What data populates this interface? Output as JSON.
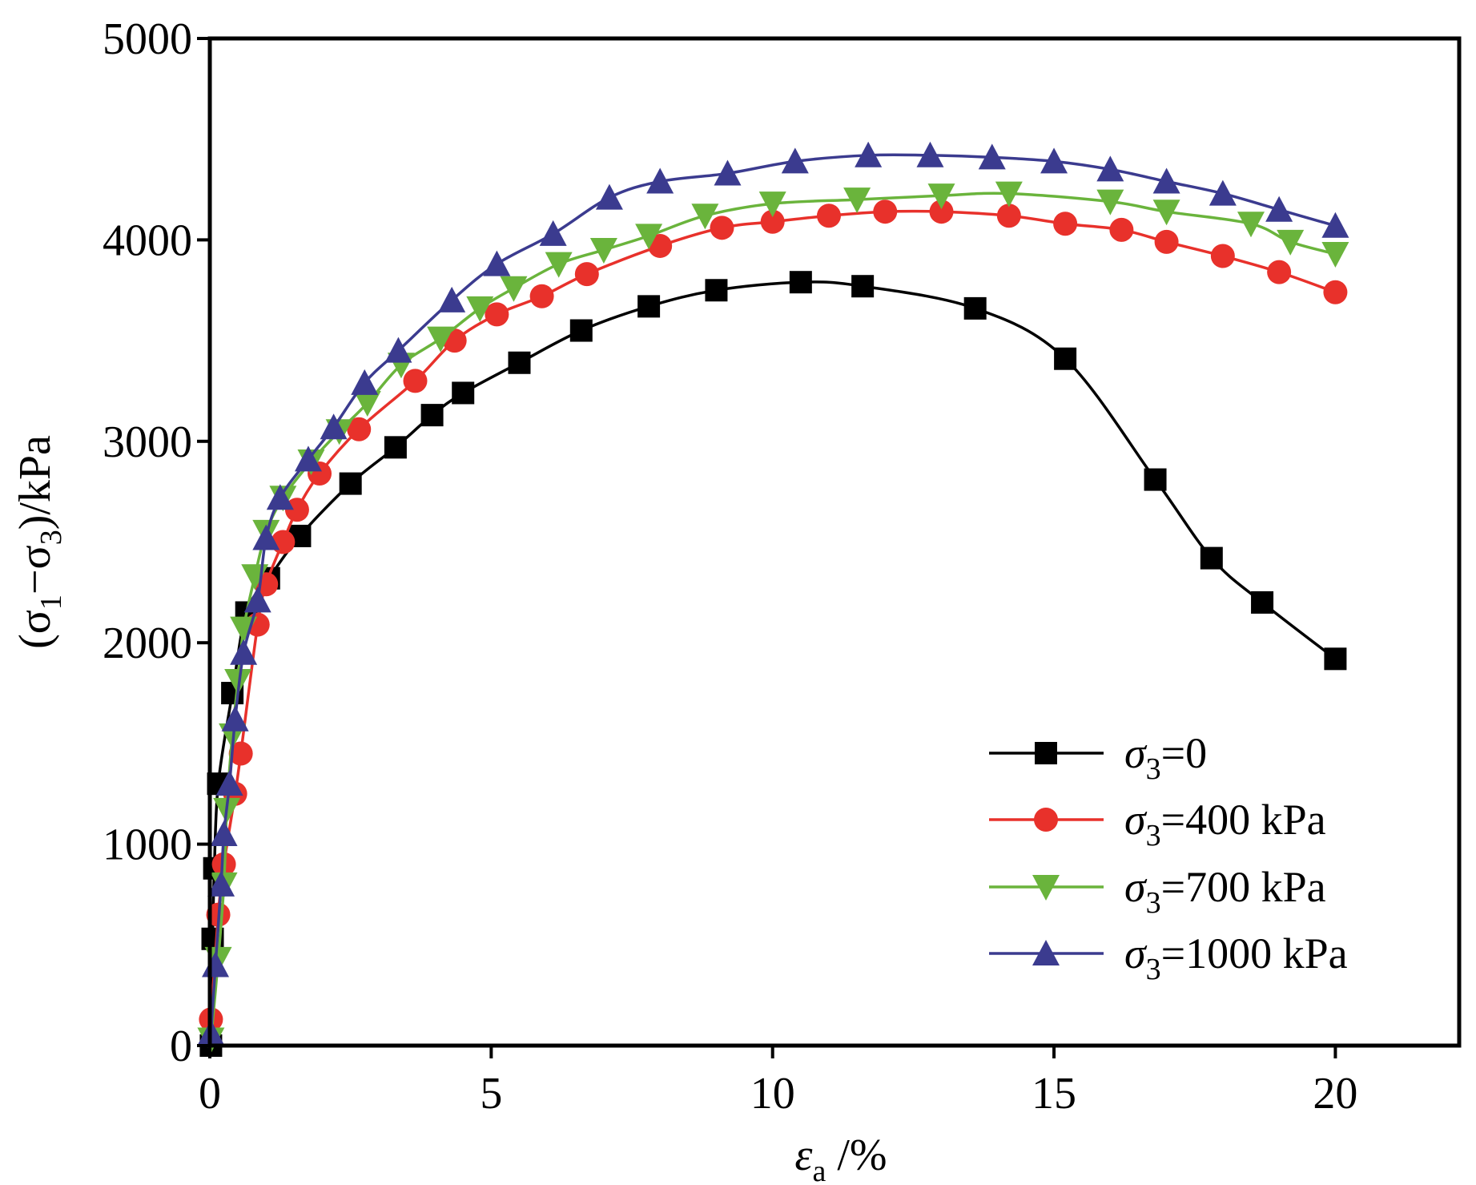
{
  "chart_data": {
    "type": "line",
    "xlabel": {
      "symbol": "ε",
      "subscript": "a",
      "suffix": " /%"
    },
    "ylabel": {
      "parts": [
        {
          "text": "(σ",
          "sub": false
        },
        {
          "text": "1",
          "sub": true
        },
        {
          "text": "−σ",
          "sub": false
        },
        {
          "text": "3",
          "sub": true
        },
        {
          "text": ")/kPa",
          "sub": false
        }
      ]
    },
    "xlim": [
      0,
      22.2
    ],
    "ylim": [
      0,
      5000
    ],
    "x_ticks": [
      0,
      5,
      10,
      15,
      20
    ],
    "x_tick_labels": [
      "0",
      "5",
      "10",
      "15",
      "20"
    ],
    "y_ticks": [
      0,
      1000,
      2000,
      3000,
      4000,
      5000
    ],
    "y_tick_labels": [
      "0",
      "1000",
      "2000",
      "3000",
      "4000",
      "5000"
    ],
    "grid": false,
    "legend_position": "bottom-right",
    "series": [
      {
        "name": "σ3=0",
        "legend": {
          "symbol": "σ",
          "sub": "3",
          "value": "=0"
        },
        "color": "#000000",
        "marker": "square",
        "points": [
          [
            0.02,
            0
          ],
          [
            0.05,
            530
          ],
          [
            0.08,
            880
          ],
          [
            0.15,
            1300
          ],
          [
            0.4,
            1750
          ],
          [
            0.65,
            2150
          ],
          [
            1.05,
            2320
          ],
          [
            1.6,
            2530
          ],
          [
            2.5,
            2790
          ],
          [
            3.3,
            2970
          ],
          [
            3.95,
            3130
          ],
          [
            4.5,
            3240
          ],
          [
            5.5,
            3390
          ],
          [
            6.6,
            3550
          ],
          [
            7.8,
            3670
          ],
          [
            9.0,
            3750
          ],
          [
            10.5,
            3790
          ],
          [
            11.6,
            3770
          ],
          [
            13.6,
            3660
          ],
          [
            15.2,
            3410
          ],
          [
            16.8,
            2810
          ],
          [
            17.8,
            2420
          ],
          [
            18.7,
            2200
          ],
          [
            20.0,
            1920
          ]
        ]
      },
      {
        "name": "σ3=400 kPa",
        "legend": {
          "symbol": "σ",
          "sub": "3",
          "value": "=400 kPa"
        },
        "color": "#e8312b",
        "marker": "circle",
        "points": [
          [
            0.02,
            130
          ],
          [
            0.15,
            650
          ],
          [
            0.25,
            900
          ],
          [
            0.45,
            1250
          ],
          [
            0.55,
            1450
          ],
          [
            0.85,
            2090
          ],
          [
            1.0,
            2290
          ],
          [
            1.3,
            2500
          ],
          [
            1.55,
            2660
          ],
          [
            1.95,
            2840
          ],
          [
            2.65,
            3060
          ],
          [
            3.65,
            3300
          ],
          [
            4.35,
            3500
          ],
          [
            5.1,
            3630
          ],
          [
            5.9,
            3720
          ],
          [
            6.7,
            3830
          ],
          [
            8.0,
            3970
          ],
          [
            9.1,
            4060
          ],
          [
            10.0,
            4090
          ],
          [
            11.0,
            4120
          ],
          [
            12.0,
            4140
          ],
          [
            13.0,
            4140
          ],
          [
            14.2,
            4120
          ],
          [
            15.2,
            4080
          ],
          [
            16.2,
            4050
          ],
          [
            17.0,
            3990
          ],
          [
            18.0,
            3920
          ],
          [
            19.0,
            3840
          ],
          [
            20.0,
            3740
          ]
        ]
      },
      {
        "name": "σ3=700 kPa",
        "legend": {
          "symbol": "σ",
          "sub": "3",
          "value": "=700 kPa"
        },
        "color": "#6ab43c",
        "marker": "triangle-down",
        "points": [
          [
            0.02,
            30
          ],
          [
            0.15,
            430
          ],
          [
            0.25,
            800
          ],
          [
            0.3,
            1170
          ],
          [
            0.4,
            1540
          ],
          [
            0.5,
            1810
          ],
          [
            0.6,
            2070
          ],
          [
            0.8,
            2330
          ],
          [
            1.0,
            2550
          ],
          [
            1.3,
            2720
          ],
          [
            1.8,
            2900
          ],
          [
            2.3,
            3050
          ],
          [
            2.8,
            3190
          ],
          [
            3.4,
            3380
          ],
          [
            4.1,
            3510
          ],
          [
            4.8,
            3660
          ],
          [
            5.4,
            3760
          ],
          [
            6.2,
            3880
          ],
          [
            7.0,
            3950
          ],
          [
            7.8,
            4020
          ],
          [
            8.8,
            4120
          ],
          [
            10.0,
            4180
          ],
          [
            11.5,
            4200
          ],
          [
            13.0,
            4220
          ],
          [
            14.2,
            4230
          ],
          [
            16.0,
            4190
          ],
          [
            17.0,
            4140
          ],
          [
            18.5,
            4080
          ],
          [
            19.2,
            3990
          ],
          [
            20.0,
            3930
          ]
        ]
      },
      {
        "name": "σ3=1000 kPa",
        "legend": {
          "symbol": "σ",
          "sub": "3",
          "value": "=1000 kPa"
        },
        "color": "#3b3b8f",
        "marker": "triangle-up",
        "points": [
          [
            0.02,
            60
          ],
          [
            0.1,
            400
          ],
          [
            0.2,
            800
          ],
          [
            0.25,
            1050
          ],
          [
            0.35,
            1300
          ],
          [
            0.45,
            1620
          ],
          [
            0.6,
            1950
          ],
          [
            0.85,
            2210
          ],
          [
            1.0,
            2520
          ],
          [
            1.25,
            2720
          ],
          [
            1.75,
            2910
          ],
          [
            2.2,
            3070
          ],
          [
            2.75,
            3290
          ],
          [
            3.35,
            3450
          ],
          [
            4.3,
            3700
          ],
          [
            5.1,
            3880
          ],
          [
            6.1,
            4030
          ],
          [
            7.1,
            4210
          ],
          [
            8.0,
            4290
          ],
          [
            9.2,
            4330
          ],
          [
            10.4,
            4390
          ],
          [
            11.7,
            4420
          ],
          [
            12.8,
            4420
          ],
          [
            13.9,
            4410
          ],
          [
            15.0,
            4390
          ],
          [
            16.0,
            4350
          ],
          [
            17.0,
            4290
          ],
          [
            18.0,
            4230
          ],
          [
            19.0,
            4150
          ],
          [
            20.0,
            4070
          ]
        ]
      }
    ]
  }
}
